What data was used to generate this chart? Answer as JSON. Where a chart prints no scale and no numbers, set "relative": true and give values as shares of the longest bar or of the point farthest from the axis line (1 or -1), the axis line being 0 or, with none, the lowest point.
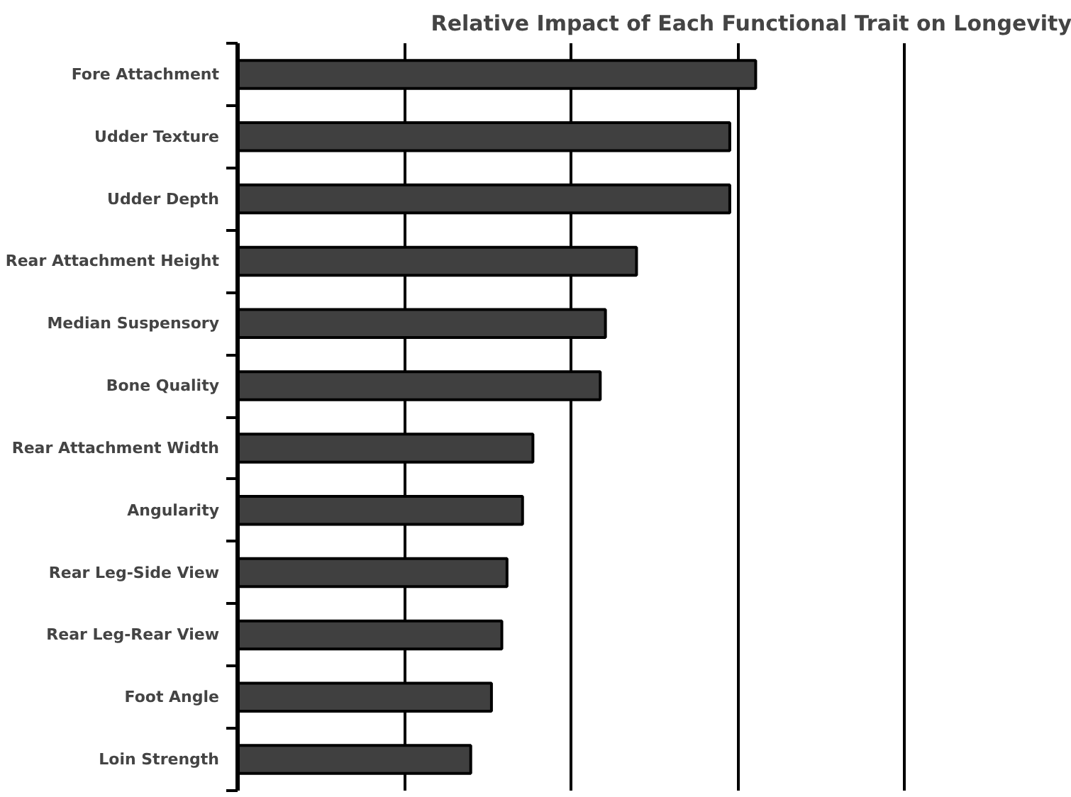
{
  "chart_data": {
    "type": "bar",
    "orientation": "horizontal",
    "relative": true,
    "title": "Relative Impact of Each Functional Trait on Longevity",
    "categories": [
      "Fore Attachment",
      "Udder Texture",
      "Udder Depth",
      "Rear Attachment Height",
      "Median Suspensory",
      "Bone Quality",
      "Rear Attachment Width",
      "Angularity",
      "Rear Leg-Side View",
      "Rear Leg-Rear View",
      "Foot Angle",
      "Loin Strength"
    ],
    "values": [
      1,
      0.95,
      0.95,
      0.77,
      0.71,
      0.7,
      0.57,
      0.55,
      0.52,
      0.51,
      0.49,
      0.45
    ],
    "color": "#404040",
    "grid": "x"
  }
}
